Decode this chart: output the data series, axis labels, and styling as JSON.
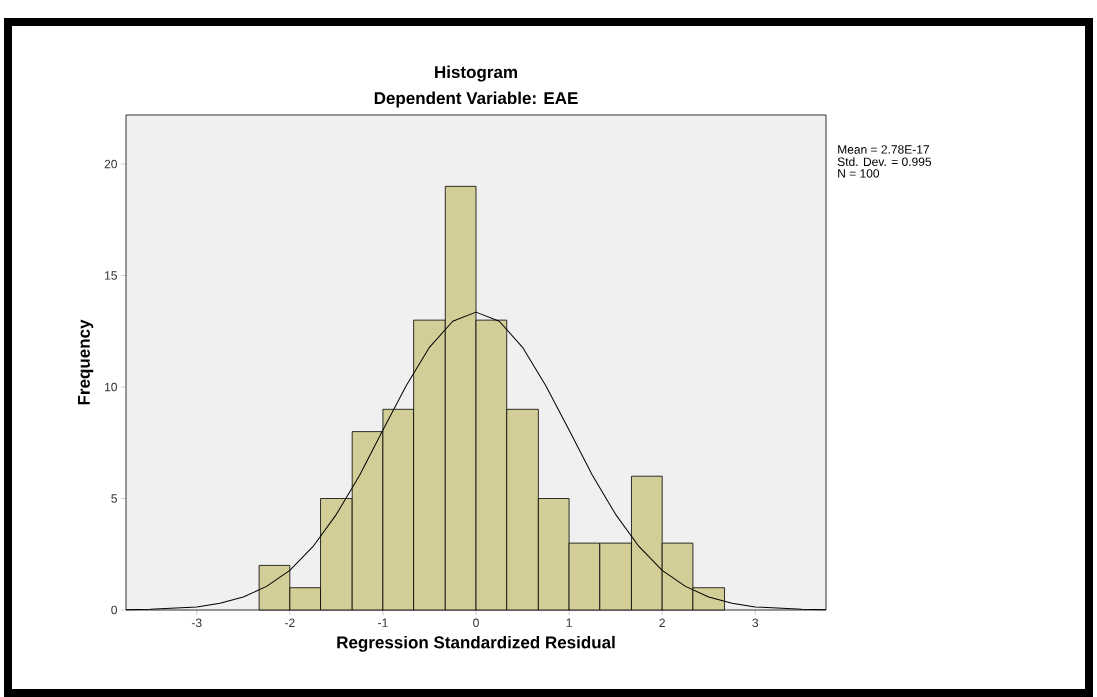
{
  "chart_data": {
    "type": "histogram",
    "title": "Histogram",
    "subtitle": "Dependent Variable: EAE",
    "xlabel": "Regression Standardized Residual",
    "ylabel": "Frequency",
    "bins": [
      -2.33,
      -2,
      -1.67,
      -1.33,
      -1,
      -0.67,
      -0.33,
      0,
      0.33,
      0.67,
      1,
      1.33,
      1.67,
      2,
      2.33,
      2.67
    ],
    "values": [
      2,
      1,
      5,
      8,
      9,
      13,
      19,
      13,
      9,
      5,
      3,
      3,
      6,
      3,
      1
    ],
    "color": "#d3ce97",
    "series": [
      {
        "type": "line",
        "color": "#000000",
        "x": [
          -3.76,
          -3.5,
          -3,
          -2.75,
          -2.5,
          -2.25,
          -2,
          -1.75,
          -1.5,
          -1.25,
          -1,
          -0.75,
          -0.5,
          -0.25,
          0,
          0.25,
          0.5,
          0.75,
          1,
          1.25,
          1.5,
          1.75,
          2,
          2.25,
          2.5,
          2.75,
          3,
          3.5,
          3.76
        ],
        "values": [
          0.01,
          0.03,
          0.14,
          0.3,
          0.58,
          1.06,
          1.78,
          2.85,
          4.29,
          6.04,
          8.07,
          10.06,
          11.78,
          12.95,
          13.36,
          12.95,
          11.78,
          10.06,
          8.07,
          6.04,
          4.29,
          2.85,
          1.78,
          1.06,
          0.58,
          0.3,
          0.14,
          0.03,
          0.01
        ]
      }
    ],
    "xlim": [
      -3.76,
      3.76
    ],
    "ylim": [
      0,
      22.2
    ],
    "xticks": [
      -3,
      -2,
      -1,
      0,
      1,
      2,
      3
    ],
    "yticks": [
      0,
      5,
      10,
      15,
      20
    ],
    "annotations": [
      "Mean = 2.78E-17",
      "Std. Dev. = 0.995",
      "N = 100"
    ]
  }
}
